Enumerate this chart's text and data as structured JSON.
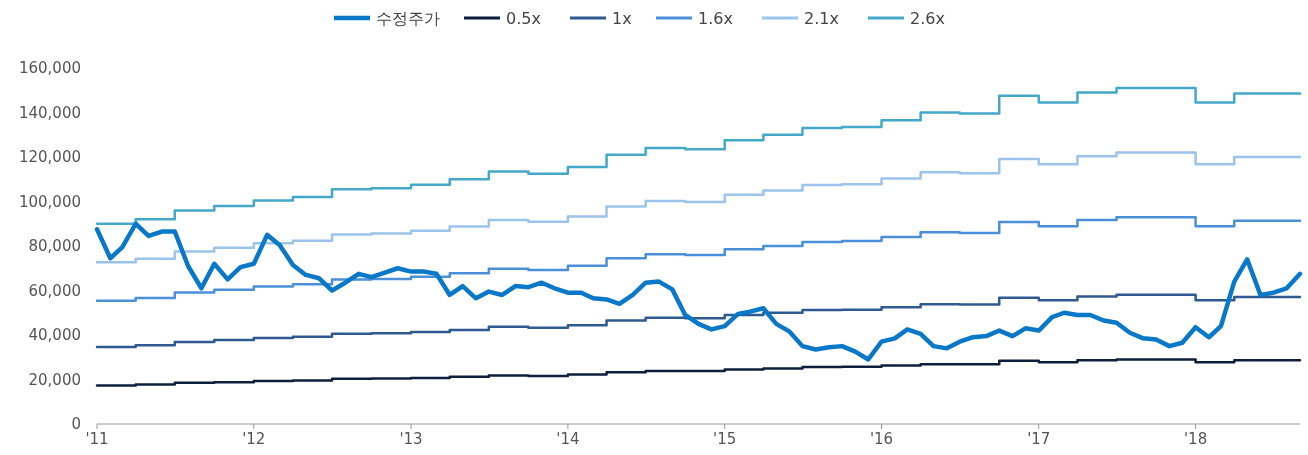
{
  "chart_data": {
    "type": "line",
    "legend": "top",
    "grid": false,
    "xlim": [
      "2011-01",
      "2018-09"
    ],
    "ylim": [
      0,
      160000
    ],
    "xticks": [
      {
        "value": "2011-01",
        "label": "'11"
      },
      {
        "value": "2012-01",
        "label": "'12"
      },
      {
        "value": "2013-01",
        "label": "'13"
      },
      {
        "value": "2014-01",
        "label": "'14"
      },
      {
        "value": "2015-01",
        "label": "'15"
      },
      {
        "value": "2016-01",
        "label": "'16"
      },
      {
        "value": "2017-01",
        "label": "'17"
      },
      {
        "value": "2018-01",
        "label": "'18"
      }
    ],
    "yticks": [
      {
        "value": 0,
        "label": "0"
      },
      {
        "value": 20000,
        "label": "20,000"
      },
      {
        "value": 40000,
        "label": "40,000"
      },
      {
        "value": 60000,
        "label": "60,000"
      },
      {
        "value": 80000,
        "label": "80,000"
      },
      {
        "value": 100000,
        "label": "100,000"
      },
      {
        "value": 120000,
        "label": "120,000"
      },
      {
        "value": 140000,
        "label": "140,000"
      },
      {
        "value": 160000,
        "label": "160,000"
      }
    ],
    "x": [
      "2011-01",
      "2011-02",
      "2011-03",
      "2011-04",
      "2011-05",
      "2011-06",
      "2011-07",
      "2011-08",
      "2011-09",
      "2011-10",
      "2011-11",
      "2011-12",
      "2012-01",
      "2012-02",
      "2012-03",
      "2012-04",
      "2012-05",
      "2012-06",
      "2012-07",
      "2012-08",
      "2012-09",
      "2012-10",
      "2012-11",
      "2012-12",
      "2013-01",
      "2013-02",
      "2013-03",
      "2013-04",
      "2013-05",
      "2013-06",
      "2013-07",
      "2013-08",
      "2013-09",
      "2013-10",
      "2013-11",
      "2013-12",
      "2014-01",
      "2014-02",
      "2014-03",
      "2014-04",
      "2014-05",
      "2014-06",
      "2014-07",
      "2014-08",
      "2014-09",
      "2014-10",
      "2014-11",
      "2014-12",
      "2015-01",
      "2015-02",
      "2015-03",
      "2015-04",
      "2015-05",
      "2015-06",
      "2015-07",
      "2015-08",
      "2015-09",
      "2015-10",
      "2015-11",
      "2015-12",
      "2016-01",
      "2016-02",
      "2016-03",
      "2016-04",
      "2016-05",
      "2016-06",
      "2016-07",
      "2016-08",
      "2016-09",
      "2016-10",
      "2016-11",
      "2016-12",
      "2017-01",
      "2017-02",
      "2017-03",
      "2017-04",
      "2017-05",
      "2017-06",
      "2017-07",
      "2017-08",
      "2017-09",
      "2017-10",
      "2017-11",
      "2017-12",
      "2018-01",
      "2018-02",
      "2018-03",
      "2018-04",
      "2018-05",
      "2018-06",
      "2018-07",
      "2018-08",
      "2018-09"
    ],
    "series": [
      {
        "name": "수정주가",
        "color": "#0a78c8",
        "values": [
          87500,
          74500,
          79500,
          90000,
          84500,
          86500,
          86500,
          71000,
          61000,
          72000,
          65000,
          70500,
          72000,
          85000,
          80500,
          71500,
          67000,
          65500,
          60000,
          63500,
          67500,
          66000,
          68000,
          70000,
          68500,
          68500,
          67500,
          58000,
          62000,
          56500,
          59500,
          58000,
          62000,
          61500,
          63500,
          61000,
          59000,
          59000,
          56500,
          56000,
          54000,
          58000,
          63500,
          64000,
          60500,
          49000,
          45000,
          42500,
          44000,
          49500,
          50500,
          52000,
          45000,
          41500,
          35000,
          33500,
          34500,
          35000,
          32500,
          29000,
          37000,
          38500,
          42500,
          40500,
          35000,
          34000,
          37000,
          39000,
          39500,
          42000,
          39500,
          43000,
          42000,
          48000,
          50000,
          49000,
          49000,
          46500,
          45500,
          41000,
          38500,
          38000,
          35000,
          36500,
          43500,
          39000,
          44000,
          64000,
          74000,
          58000,
          59000,
          61000,
          67500
        ]
      },
      {
        "name": "0.5x",
        "color": "#0d1f3c",
        "type": "step",
        "x": [
          "2011-01",
          "2011-04",
          "2011-07",
          "2011-10",
          "2012-01",
          "2012-04",
          "2012-07",
          "2012-10",
          "2013-01",
          "2013-04",
          "2013-07",
          "2013-10",
          "2014-01",
          "2014-04",
          "2014-07",
          "2014-10",
          "2015-01",
          "2015-04",
          "2015-07",
          "2015-10",
          "2016-01",
          "2016-04",
          "2016-07",
          "2016-10",
          "2017-01",
          "2017-04",
          "2017-07",
          "2017-10",
          "2018-01",
          "2018-04",
          "2018-07",
          "2018-09"
        ],
        "values": [
          17300,
          17700,
          18500,
          18800,
          19300,
          19600,
          20300,
          20400,
          20700,
          21200,
          21800,
          21600,
          22200,
          23300,
          23800,
          23800,
          24500,
          25000,
          25600,
          25700,
          26300,
          26900,
          26800,
          28400,
          27800,
          28700,
          29000,
          29000,
          27800,
          28600,
          28600,
          28600
        ]
      },
      {
        "name": "1x",
        "color": "#2f5a8f",
        "type": "step",
        "x": [
          "2011-01",
          "2011-04",
          "2011-07",
          "2011-10",
          "2012-01",
          "2012-04",
          "2012-07",
          "2012-10",
          "2013-01",
          "2013-04",
          "2013-07",
          "2013-10",
          "2014-01",
          "2014-04",
          "2014-07",
          "2014-10",
          "2015-01",
          "2015-04",
          "2015-07",
          "2015-10",
          "2016-01",
          "2016-04",
          "2016-07",
          "2016-10",
          "2017-01",
          "2017-04",
          "2017-07",
          "2017-10",
          "2018-01",
          "2018-04",
          "2018-07",
          "2018-09"
        ],
        "values": [
          34600,
          35400,
          36900,
          37700,
          38700,
          39200,
          40600,
          40800,
          41300,
          42300,
          43700,
          43300,
          44400,
          46500,
          47700,
          47500,
          49000,
          50000,
          51200,
          51300,
          52500,
          53800,
          53700,
          56700,
          55600,
          57300,
          58100,
          58100,
          55600,
          57100,
          57100,
          57100
        ]
      },
      {
        "name": "1.6x",
        "color": "#4a8fd8",
        "type": "step",
        "x": [
          "2011-01",
          "2011-04",
          "2011-07",
          "2011-10",
          "2012-01",
          "2012-04",
          "2012-07",
          "2012-10",
          "2013-01",
          "2013-04",
          "2013-07",
          "2013-10",
          "2014-01",
          "2014-04",
          "2014-07",
          "2014-10",
          "2015-01",
          "2015-04",
          "2015-07",
          "2015-10",
          "2016-01",
          "2016-04",
          "2016-07",
          "2016-10",
          "2017-01",
          "2017-04",
          "2017-07",
          "2017-10",
          "2018-01",
          "2018-04",
          "2018-07",
          "2018-09"
        ],
        "values": [
          55400,
          56600,
          59100,
          60300,
          61800,
          62800,
          64900,
          65200,
          66200,
          67700,
          69800,
          69200,
          71100,
          74500,
          76300,
          76000,
          78500,
          80000,
          81800,
          82200,
          84000,
          86200,
          85800,
          90800,
          88900,
          91700,
          92900,
          92900,
          88900,
          91400,
          91400,
          91400
        ]
      },
      {
        "name": "2.1x",
        "color": "#9cc3ec",
        "type": "step",
        "x": [
          "2011-01",
          "2011-04",
          "2011-07",
          "2011-10",
          "2012-01",
          "2012-04",
          "2012-07",
          "2012-10",
          "2013-01",
          "2013-04",
          "2013-07",
          "2013-10",
          "2014-01",
          "2014-04",
          "2014-07",
          "2014-10",
          "2015-01",
          "2015-04",
          "2015-07",
          "2015-10",
          "2016-01",
          "2016-04",
          "2016-07",
          "2016-10",
          "2017-01",
          "2017-04",
          "2017-07",
          "2017-10",
          "2018-01",
          "2018-04",
          "2018-07",
          "2018-09"
        ],
        "values": [
          72700,
          74300,
          77500,
          79200,
          81200,
          82400,
          85200,
          85600,
          86800,
          88800,
          91700,
          90900,
          93300,
          97700,
          100200,
          99800,
          103000,
          105000,
          107400,
          107800,
          110300,
          113100,
          112700,
          119100,
          116700,
          120300,
          122000,
          122000,
          116700,
          120000,
          120000,
          120000
        ]
      },
      {
        "name": "2.6x",
        "color": "#44a8c8",
        "type": "step",
        "x": [
          "2011-01",
          "2011-04",
          "2011-07",
          "2011-10",
          "2012-01",
          "2012-04",
          "2012-07",
          "2012-10",
          "2013-01",
          "2013-04",
          "2013-07",
          "2013-10",
          "2014-01",
          "2014-04",
          "2014-07",
          "2014-10",
          "2015-01",
          "2015-04",
          "2015-07",
          "2015-10",
          "2016-01",
          "2016-04",
          "2016-07",
          "2016-10",
          "2017-01",
          "2017-04",
          "2017-07",
          "2017-10",
          "2018-01",
          "2018-04",
          "2018-07",
          "2018-09"
        ],
        "values": [
          90000,
          92000,
          96000,
          98000,
          100500,
          102000,
          105500,
          106000,
          107500,
          110000,
          113500,
          112500,
          115500,
          121000,
          124000,
          123500,
          127500,
          130000,
          133000,
          133500,
          136500,
          140000,
          139500,
          147500,
          144500,
          149000,
          151000,
          151000,
          144500,
          148500,
          148500,
          148500
        ]
      }
    ]
  }
}
